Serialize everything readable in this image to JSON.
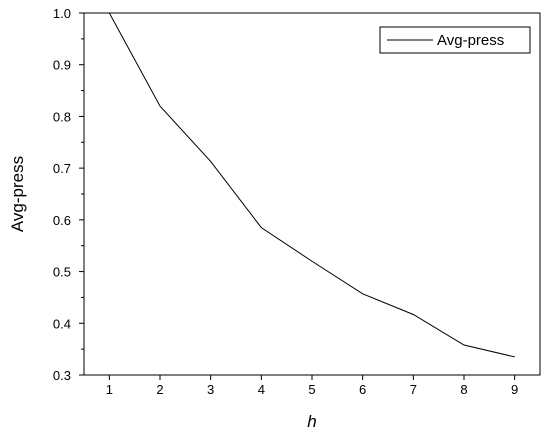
{
  "chart_data": {
    "type": "line",
    "title": "",
    "xlabel": "h",
    "ylabel": "Avg-press",
    "xlim": [
      0.5,
      9.5
    ],
    "ylim": [
      0.3,
      1.0
    ],
    "xticks": [
      "1",
      "2",
      "3",
      "4",
      "5",
      "6",
      "7",
      "8",
      "9"
    ],
    "yticks": [
      "0.3",
      "0.4",
      "0.5",
      "0.6",
      "0.7",
      "0.8",
      "0.9",
      "1.0"
    ],
    "grid": false,
    "legend_position": "top-right",
    "series": [
      {
        "name": "Avg-press",
        "color": "#000000",
        "x": [
          1,
          2,
          3,
          4,
          5,
          6,
          7,
          8,
          9
        ],
        "y": [
          1.0,
          0.82,
          0.713,
          0.585,
          0.52,
          0.457,
          0.417,
          0.358,
          0.335
        ]
      }
    ]
  }
}
